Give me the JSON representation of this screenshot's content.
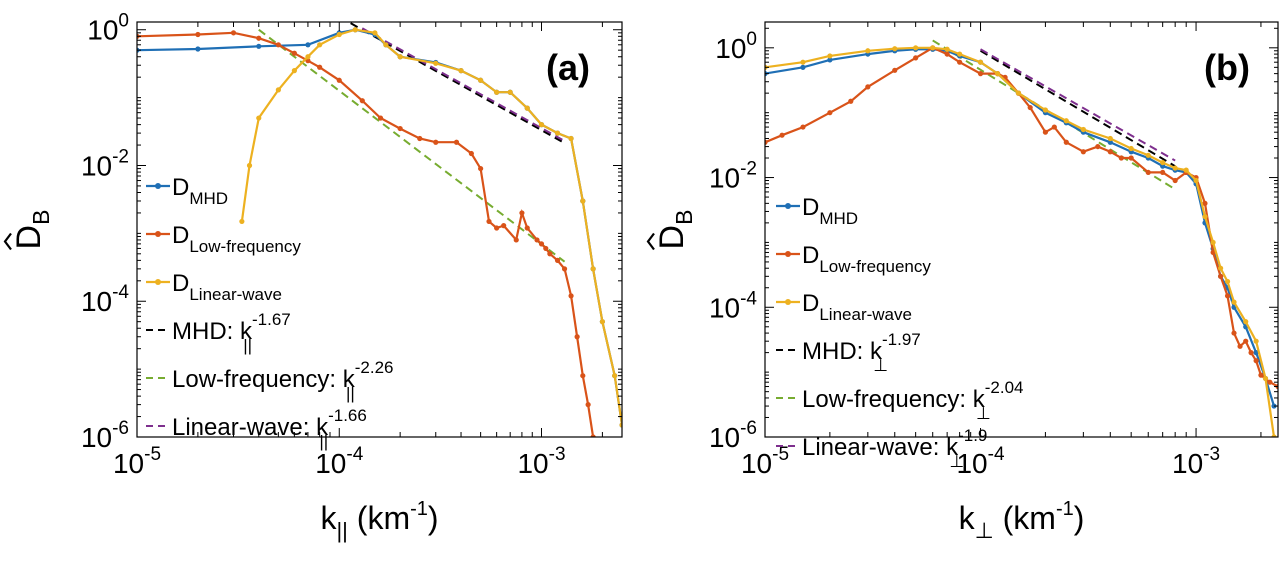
{
  "chart_data": [
    {
      "type": "line",
      "panel_label": "(a)",
      "ylabel": {
        "main": "D",
        "sub": "B"
      },
      "xlabel": {
        "main": "k",
        "sub": "||",
        "unit": " (km",
        "unit_sup": "-1",
        "close": ")"
      },
      "xscale": "log",
      "yscale": "log",
      "xlim": [
        1e-05,
        0.0025
      ],
      "ylim": [
        1e-06,
        1.3
      ],
      "x_ticks": [
        {
          "value": 1e-05,
          "base": "10",
          "exp": "-5"
        },
        {
          "value": 0.0001,
          "base": "10",
          "exp": "-4"
        },
        {
          "value": 0.001,
          "base": "10",
          "exp": "-3"
        }
      ],
      "y_ticks": [
        {
          "value": 1e-06,
          "base": "10",
          "exp": "-6"
        },
        {
          "value": 0.0001,
          "base": "10",
          "exp": "-4"
        },
        {
          "value": 0.01,
          "base": "10",
          "exp": "-2"
        },
        {
          "value": 1,
          "base": "10",
          "exp": "0"
        }
      ],
      "grid": false,
      "legend_position": "left",
      "series": [
        {
          "name": "MHD",
          "color": "#1f6fb5",
          "markers": true,
          "points": [
            [
              1e-05,
              0.5
            ],
            [
              2e-05,
              0.52
            ],
            [
              4e-05,
              0.57
            ],
            [
              7e-05,
              0.6
            ],
            [
              0.0001,
              0.9
            ],
            [
              0.00012,
              1.0
            ],
            [
              0.00015,
              0.85
            ],
            [
              0.00017,
              0.6
            ],
            [
              0.0002,
              0.4
            ],
            [
              0.0003,
              0.33
            ],
            [
              0.0004,
              0.25
            ],
            [
              0.0005,
              0.18
            ],
            [
              0.0006,
              0.12
            ],
            [
              0.0007,
              0.12
            ],
            [
              0.00085,
              0.07
            ],
            [
              0.001,
              0.04
            ],
            [
              0.0012,
              0.03
            ],
            [
              0.0014,
              0.025
            ],
            [
              0.0016,
              0.003
            ],
            [
              0.0018,
              0.0003
            ],
            [
              0.002,
              5e-05
            ],
            [
              0.0023,
              8e-06
            ],
            [
              0.0025,
              1.5e-06
            ]
          ]
        },
        {
          "name": "Low-frequency",
          "color": "#d95319",
          "markers": true,
          "points": [
            [
              1e-05,
              0.8
            ],
            [
              2e-05,
              0.85
            ],
            [
              3e-05,
              0.9
            ],
            [
              4e-05,
              0.75
            ],
            [
              5e-05,
              0.6
            ],
            [
              6e-05,
              0.45
            ],
            [
              7e-05,
              0.35
            ],
            [
              8e-05,
              0.28
            ],
            [
              0.0001,
              0.18
            ],
            [
              0.00013,
              0.09
            ],
            [
              0.00016,
              0.05
            ],
            [
              0.0002,
              0.035
            ],
            [
              0.00025,
              0.025
            ],
            [
              0.0003,
              0.022
            ],
            [
              0.00038,
              0.022
            ],
            [
              0.00045,
              0.015
            ],
            [
              0.0005,
              0.009
            ],
            [
              0.00055,
              0.0015
            ],
            [
              0.0006,
              0.0012
            ],
            [
              0.00065,
              0.0013
            ],
            [
              0.00075,
              0.0008
            ],
            [
              0.0008,
              0.002
            ],
            [
              0.00085,
              0.0012
            ],
            [
              0.00095,
              0.0008
            ],
            [
              0.001,
              0.0007
            ],
            [
              0.00105,
              0.0006
            ],
            [
              0.0011,
              0.0005
            ],
            [
              0.0012,
              0.0004
            ],
            [
              0.0013,
              0.0003
            ],
            [
              0.0014,
              0.00012
            ],
            [
              0.0015,
              3e-05
            ],
            [
              0.0016,
              8e-06
            ],
            [
              0.0017,
              3e-06
            ],
            [
              0.0018,
              1e-06
            ]
          ]
        },
        {
          "name": "Linear-wave",
          "color": "#edb120",
          "markers": true,
          "points": [
            [
              3.3e-05,
              0.0015
            ],
            [
              3.6e-05,
              0.01
            ],
            [
              4e-05,
              0.05
            ],
            [
              5e-05,
              0.13
            ],
            [
              6e-05,
              0.25
            ],
            [
              7e-05,
              0.4
            ],
            [
              8e-05,
              0.6
            ],
            [
              0.0001,
              0.85
            ],
            [
              0.00012,
              1.0
            ],
            [
              0.00015,
              0.9
            ],
            [
              0.00017,
              0.6
            ],
            [
              0.0002,
              0.4
            ],
            [
              0.0003,
              0.32
            ],
            [
              0.0004,
              0.25
            ],
            [
              0.0005,
              0.18
            ],
            [
              0.0006,
              0.12
            ],
            [
              0.0007,
              0.12
            ],
            [
              0.00085,
              0.07
            ],
            [
              0.001,
              0.04
            ],
            [
              0.0012,
              0.03
            ],
            [
              0.0014,
              0.025
            ],
            [
              0.0016,
              0.003
            ],
            [
              0.0018,
              0.0003
            ],
            [
              0.002,
              5e-05
            ],
            [
              0.0023,
              8e-06
            ],
            [
              0.0025,
              1.5e-06
            ]
          ]
        }
      ],
      "fits": [
        {
          "name": "MHD",
          "slope": -1.67,
          "color": "#000000",
          "x_range": [
            0.0001,
            0.0013
          ],
          "anchor": [
            0.00013,
            1.0
          ]
        },
        {
          "name": "Low-frequency",
          "slope": -2.26,
          "color": "#77ac30",
          "x_range": [
            4e-05,
            0.0013
          ],
          "anchor": [
            4e-05,
            1.0
          ]
        },
        {
          "name": "Linear-wave",
          "slope": -1.66,
          "color": "#7e2f8e",
          "x_range": [
            0.00013,
            0.0013
          ],
          "anchor": [
            0.00013,
            1.05
          ]
        }
      ],
      "legend": [
        {
          "kind": "series",
          "color": "#1f6fb5",
          "main": "D",
          "sub": "MHD"
        },
        {
          "kind": "series",
          "color": "#d95319",
          "main": "D",
          "sub": "Low-frequency"
        },
        {
          "kind": "series",
          "color": "#edb120",
          "main": "D",
          "sub": "Linear-wave"
        },
        {
          "kind": "fit",
          "color": "#000000",
          "prefix": "MHD: ",
          "main": "k",
          "sub": "||",
          "sup": "-1.67"
        },
        {
          "kind": "fit",
          "color": "#77ac30",
          "prefix": "Low-frequency: ",
          "main": "k",
          "sub": "||",
          "sup": "-2.26"
        },
        {
          "kind": "fit",
          "color": "#7e2f8e",
          "prefix": "Linear-wave: ",
          "main": "k",
          "sub": "||",
          "sup": "-1.66"
        }
      ]
    },
    {
      "type": "line",
      "panel_label": "(b)",
      "ylabel": {
        "main": "D",
        "sub": "B"
      },
      "xlabel": {
        "main": "k",
        "sub": "⊥",
        "unit": " (km",
        "unit_sup": "-1",
        "close": ")"
      },
      "xscale": "log",
      "yscale": "log",
      "xlim": [
        1e-05,
        0.0024
      ],
      "ylim": [
        1e-06,
        2.5
      ],
      "x_ticks": [
        {
          "value": 1e-05,
          "base": "10",
          "exp": "-5"
        },
        {
          "value": 0.0001,
          "base": "10",
          "exp": "-4"
        },
        {
          "value": 0.001,
          "base": "10",
          "exp": "-3"
        }
      ],
      "y_ticks": [
        {
          "value": 1e-06,
          "base": "10",
          "exp": "-6"
        },
        {
          "value": 0.0001,
          "base": "10",
          "exp": "-4"
        },
        {
          "value": 0.01,
          "base": "10",
          "exp": "-2"
        },
        {
          "value": 1,
          "base": "10",
          "exp": "0"
        }
      ],
      "grid": false,
      "legend_position": "right",
      "series": [
        {
          "name": "MHD",
          "color": "#1f6fb5",
          "markers": true,
          "points": [
            [
              1e-05,
              0.4
            ],
            [
              1.5e-05,
              0.5
            ],
            [
              2e-05,
              0.65
            ],
            [
              3e-05,
              0.8
            ],
            [
              4e-05,
              0.9
            ],
            [
              5e-05,
              0.95
            ],
            [
              6e-05,
              0.95
            ],
            [
              7e-05,
              0.9
            ],
            [
              8e-05,
              0.75
            ],
            [
              0.0001,
              0.6
            ],
            [
              0.00012,
              0.4
            ],
            [
              0.00015,
              0.2
            ],
            [
              0.0002,
              0.1
            ],
            [
              0.00025,
              0.07
            ],
            [
              0.0003,
              0.05
            ],
            [
              0.0004,
              0.035
            ],
            [
              0.0005,
              0.025
            ],
            [
              0.0006,
              0.02
            ],
            [
              0.0007,
              0.015
            ],
            [
              0.0008,
              0.013
            ],
            [
              0.0009,
              0.012
            ],
            [
              0.001,
              0.008
            ],
            [
              0.0011,
              0.002
            ],
            [
              0.0012,
              0.0008
            ],
            [
              0.0013,
              0.0003
            ],
            [
              0.0014,
              0.0002
            ],
            [
              0.0015,
              0.0001
            ],
            [
              0.0017,
              5e-05
            ],
            [
              0.0019,
              2e-05
            ],
            [
              0.0021,
              8e-06
            ],
            [
              0.0023,
              3e-06
            ]
          ]
        },
        {
          "name": "Low-frequency",
          "color": "#d95319",
          "markers": true,
          "points": [
            [
              1e-05,
              0.035
            ],
            [
              1.2e-05,
              0.045
            ],
            [
              1.5e-05,
              0.06
            ],
            [
              2e-05,
              0.1
            ],
            [
              2.5e-05,
              0.15
            ],
            [
              3e-05,
              0.25
            ],
            [
              4e-05,
              0.45
            ],
            [
              5e-05,
              0.7
            ],
            [
              6e-05,
              1.0
            ],
            [
              7e-05,
              0.8
            ],
            [
              8e-05,
              0.6
            ],
            [
              0.0001,
              0.4
            ],
            [
              0.00012,
              0.4
            ],
            [
              0.00013,
              0.35
            ],
            [
              0.00015,
              0.2
            ],
            [
              0.00017,
              0.12
            ],
            [
              0.0002,
              0.05
            ],
            [
              0.00022,
              0.06
            ],
            [
              0.00025,
              0.035
            ],
            [
              0.0003,
              0.025
            ],
            [
              0.00035,
              0.03
            ],
            [
              0.0004,
              0.025
            ],
            [
              0.00045,
              0.02
            ],
            [
              0.0005,
              0.02
            ],
            [
              0.0006,
              0.012
            ],
            [
              0.0007,
              0.012
            ],
            [
              0.0008,
              0.009
            ],
            [
              0.0009,
              0.012
            ],
            [
              0.001,
              0.01
            ],
            [
              0.0011,
              0.004
            ],
            [
              0.0012,
              0.0007
            ],
            [
              0.0013,
              0.0003
            ],
            [
              0.0014,
              0.00015
            ],
            [
              0.0015,
              4e-05
            ],
            [
              0.0016,
              2.5e-05
            ],
            [
              0.0017,
              3e-05
            ],
            [
              0.0018,
              2e-05
            ],
            [
              0.0019,
              1.5e-05
            ],
            [
              0.002,
              9e-06
            ],
            [
              0.0022,
              7e-06
            ],
            [
              0.0024,
              6e-06
            ]
          ]
        },
        {
          "name": "Linear-wave",
          "color": "#edb120",
          "markers": true,
          "points": [
            [
              1e-05,
              0.5
            ],
            [
              1.5e-05,
              0.6
            ],
            [
              2e-05,
              0.75
            ],
            [
              3e-05,
              0.9
            ],
            [
              4e-05,
              0.97
            ],
            [
              5e-05,
              1.0
            ],
            [
              6e-05,
              1.0
            ],
            [
              7e-05,
              0.95
            ],
            [
              8e-05,
              0.8
            ],
            [
              0.0001,
              0.6
            ],
            [
              0.00012,
              0.4
            ],
            [
              0.00015,
              0.2
            ],
            [
              0.0002,
              0.11
            ],
            [
              0.00025,
              0.075
            ],
            [
              0.0003,
              0.055
            ],
            [
              0.0004,
              0.04
            ],
            [
              0.0005,
              0.028
            ],
            [
              0.0006,
              0.022
            ],
            [
              0.0007,
              0.017
            ],
            [
              0.0008,
              0.014
            ],
            [
              0.0009,
              0.013
            ],
            [
              0.001,
              0.009
            ],
            [
              0.0011,
              0.0025
            ],
            [
              0.0012,
              0.001
            ],
            [
              0.0013,
              0.0004
            ],
            [
              0.0014,
              0.00025
            ],
            [
              0.0015,
              0.00012
            ],
            [
              0.0017,
              6e-05
            ],
            [
              0.0019,
              3e-05
            ],
            [
              0.0021,
              8e-06
            ],
            [
              0.0023,
              1e-06
            ]
          ]
        }
      ],
      "fits": [
        {
          "name": "MHD",
          "slope": -1.97,
          "color": "#000000",
          "x_range": [
            0.0001,
            0.0008
          ],
          "anchor": [
            0.0001,
            0.9
          ]
        },
        {
          "name": "Low-frequency",
          "slope": -2.04,
          "color": "#77ac30",
          "x_range": [
            6e-05,
            0.0008
          ],
          "anchor": [
            6e-05,
            1.3
          ]
        },
        {
          "name": "Linear-wave",
          "slope": -1.9,
          "color": "#7e2f8e",
          "x_range": [
            0.0001,
            0.0008
          ],
          "anchor": [
            0.0001,
            0.95
          ]
        }
      ],
      "legend": [
        {
          "kind": "series",
          "color": "#1f6fb5",
          "main": "D",
          "sub": "MHD"
        },
        {
          "kind": "series",
          "color": "#d95319",
          "main": "D",
          "sub": "Low-frequency"
        },
        {
          "kind": "series",
          "color": "#edb120",
          "main": "D",
          "sub": "Linear-wave"
        },
        {
          "kind": "fit",
          "color": "#000000",
          "prefix": "MHD: ",
          "main": "k",
          "sub": "⊥",
          "sup": "-1.97"
        },
        {
          "kind": "fit",
          "color": "#77ac30",
          "prefix": "Low-frequency: ",
          "main": "k",
          "sub": "⊥",
          "sup": "-2.04"
        },
        {
          "kind": "fit",
          "color": "#7e2f8e",
          "prefix": "Linear-wave: ",
          "main": "k",
          "sub": "⊥",
          "sup": "-1.9"
        }
      ]
    }
  ]
}
